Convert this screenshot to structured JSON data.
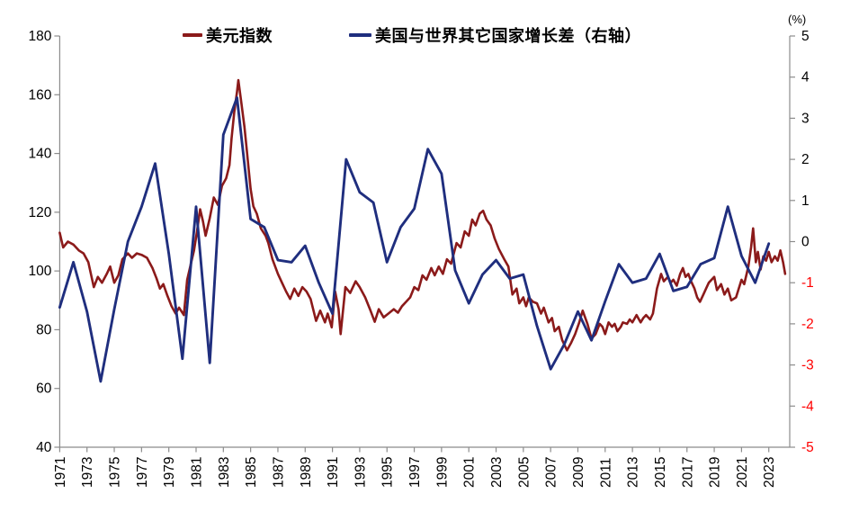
{
  "page": {
    "background": "#FFFFFF"
  },
  "chart_data": {
    "type": "line",
    "title": "",
    "legend_position": "top",
    "grid": "off",
    "axis_line_color": "#8C8C8C",
    "x_axis": {
      "tick_labels": [
        "1971",
        "1973",
        "1975",
        "1977",
        "1979",
        "1981",
        "1983",
        "1985",
        "1987",
        "1989",
        "1991",
        "1993",
        "1995",
        "1997",
        "1999",
        "2001",
        "2003",
        "2005",
        "2007",
        "2009",
        "2011",
        "2013",
        "2015",
        "2017",
        "2019",
        "2021",
        "2023"
      ],
      "range": [
        1971,
        2024.5
      ],
      "label_color": "#000000"
    },
    "left_axis": {
      "min": 40,
      "max": 180,
      "step": 20,
      "tick_labels": [
        "180",
        "160",
        "140",
        "120",
        "100",
        "80",
        "60",
        "40"
      ],
      "label_color": "#000000"
    },
    "right_axis": {
      "min": -5,
      "max": 5,
      "step": 1,
      "unit": "(%)",
      "tick_labels": [
        "5",
        "4",
        "3",
        "2",
        "1",
        "0",
        "-1",
        "-2",
        "-3",
        "-4",
        "-5"
      ],
      "positive_label_color": "#000000",
      "negative_label_color": "#FF0000"
    },
    "series": [
      {
        "name": "美元指数",
        "axis": "left",
        "color": "#8B1A1A",
        "points": [
          [
            1971.0,
            113
          ],
          [
            1971.25,
            108
          ],
          [
            1971.6,
            110
          ],
          [
            1972.0,
            109
          ],
          [
            1972.4,
            107
          ],
          [
            1972.75,
            106
          ],
          [
            1973.1,
            103
          ],
          [
            1973.5,
            94.5
          ],
          [
            1973.8,
            98
          ],
          [
            1974.1,
            96
          ],
          [
            1974.45,
            99
          ],
          [
            1974.7,
            101.5
          ],
          [
            1975.0,
            96
          ],
          [
            1975.3,
            98.5
          ],
          [
            1975.6,
            104
          ],
          [
            1976.0,
            106
          ],
          [
            1976.3,
            104.5
          ],
          [
            1976.65,
            106
          ],
          [
            1977.0,
            105.5
          ],
          [
            1977.4,
            104.5
          ],
          [
            1977.8,
            101
          ],
          [
            1978.1,
            97.5
          ],
          [
            1978.35,
            94
          ],
          [
            1978.6,
            95.5
          ],
          [
            1978.9,
            91.5
          ],
          [
            1979.2,
            88
          ],
          [
            1979.5,
            85.5
          ],
          [
            1979.75,
            87.5
          ],
          [
            1980.1,
            85
          ],
          [
            1980.35,
            97
          ],
          [
            1980.6,
            102
          ],
          [
            1980.85,
            107
          ],
          [
            1981.05,
            113
          ],
          [
            1981.3,
            121
          ],
          [
            1981.5,
            117
          ],
          [
            1981.7,
            112
          ],
          [
            1982.0,
            118
          ],
          [
            1982.3,
            125
          ],
          [
            1982.6,
            122.5
          ],
          [
            1982.9,
            129
          ],
          [
            1983.2,
            131.5
          ],
          [
            1983.45,
            136
          ],
          [
            1983.6,
            145
          ],
          [
            1983.8,
            154
          ],
          [
            1984.0,
            161
          ],
          [
            1984.1,
            165
          ],
          [
            1984.3,
            158
          ],
          [
            1984.55,
            149
          ],
          [
            1984.7,
            142
          ],
          [
            1985.0,
            128
          ],
          [
            1985.2,
            122
          ],
          [
            1985.45,
            119.5
          ],
          [
            1985.75,
            114.5
          ],
          [
            1986.1,
            112
          ],
          [
            1986.3,
            109.5
          ],
          [
            1986.6,
            104
          ],
          [
            1987.0,
            99
          ],
          [
            1987.3,
            96
          ],
          [
            1987.6,
            93
          ],
          [
            1987.9,
            90.5
          ],
          [
            1988.2,
            94
          ],
          [
            1988.5,
            91.5
          ],
          [
            1988.8,
            94.5
          ],
          [
            1989.1,
            93
          ],
          [
            1989.4,
            90.5
          ],
          [
            1989.8,
            83
          ],
          [
            1990.1,
            86.5
          ],
          [
            1990.45,
            82.5
          ],
          [
            1990.65,
            85.5
          ],
          [
            1990.95,
            80.8
          ],
          [
            1991.2,
            93
          ],
          [
            1991.45,
            87
          ],
          [
            1991.6,
            78.5
          ],
          [
            1991.95,
            94.5
          ],
          [
            1992.3,
            92.5
          ],
          [
            1992.7,
            96.5
          ],
          [
            1993.0,
            94.5
          ],
          [
            1993.4,
            91
          ],
          [
            1993.75,
            87
          ],
          [
            1994.1,
            82.7
          ],
          [
            1994.4,
            87
          ],
          [
            1994.75,
            84.2
          ],
          [
            1995.1,
            85.5
          ],
          [
            1995.5,
            87
          ],
          [
            1995.8,
            85.8
          ],
          [
            1996.1,
            88
          ],
          [
            1996.4,
            89.5
          ],
          [
            1996.7,
            91
          ],
          [
            1997.0,
            94.5
          ],
          [
            1997.3,
            93.5
          ],
          [
            1997.6,
            98.5
          ],
          [
            1997.9,
            97
          ],
          [
            1998.25,
            101
          ],
          [
            1998.5,
            98.5
          ],
          [
            1998.8,
            101.5
          ],
          [
            1999.1,
            99
          ],
          [
            1999.4,
            104
          ],
          [
            1999.7,
            102.5
          ],
          [
            2000.1,
            109.5
          ],
          [
            2000.4,
            108
          ],
          [
            2000.7,
            113.5
          ],
          [
            2001.0,
            112
          ],
          [
            2001.25,
            117.5
          ],
          [
            2001.5,
            115.5
          ],
          [
            2001.8,
            119.5
          ],
          [
            2002.05,
            120.5
          ],
          [
            2002.3,
            117.5
          ],
          [
            2002.6,
            115.5
          ],
          [
            2002.9,
            111
          ],
          [
            2003.2,
            107.5
          ],
          [
            2003.6,
            104
          ],
          [
            2003.9,
            101.5
          ],
          [
            2004.2,
            92
          ],
          [
            2004.5,
            94
          ],
          [
            2004.7,
            89
          ],
          [
            2005.0,
            91
          ],
          [
            2005.2,
            88
          ],
          [
            2005.4,
            91
          ],
          [
            2005.7,
            89.5
          ],
          [
            2006.0,
            89
          ],
          [
            2006.3,
            85.5
          ],
          [
            2006.5,
            87.5
          ],
          [
            2006.85,
            82.5
          ],
          [
            2007.1,
            84
          ],
          [
            2007.3,
            79.5
          ],
          [
            2007.6,
            81
          ],
          [
            2007.85,
            76.5
          ],
          [
            2008.2,
            73
          ],
          [
            2008.5,
            75.5
          ],
          [
            2008.8,
            78.5
          ],
          [
            2009.1,
            82.5
          ],
          [
            2009.35,
            86.5
          ],
          [
            2009.7,
            82
          ],
          [
            2010.0,
            77
          ],
          [
            2010.3,
            78.5
          ],
          [
            2010.6,
            82
          ],
          [
            2010.8,
            81
          ],
          [
            2011.0,
            78.5
          ],
          [
            2011.25,
            82.5
          ],
          [
            2011.5,
            81
          ],
          [
            2011.7,
            82
          ],
          [
            2011.9,
            79.5
          ],
          [
            2012.15,
            81
          ],
          [
            2012.3,
            82.5
          ],
          [
            2012.6,
            82
          ],
          [
            2012.8,
            83.5
          ],
          [
            2013.0,
            82.5
          ],
          [
            2013.3,
            85
          ],
          [
            2013.6,
            82.5
          ],
          [
            2013.8,
            84
          ],
          [
            2014.0,
            85
          ],
          [
            2014.3,
            83.5
          ],
          [
            2014.5,
            85.5
          ],
          [
            2014.8,
            94
          ],
          [
            2015.1,
            99
          ],
          [
            2015.3,
            96.5
          ],
          [
            2015.6,
            98
          ],
          [
            2015.8,
            96
          ],
          [
            2016.0,
            97
          ],
          [
            2016.25,
            95
          ],
          [
            2016.5,
            99
          ],
          [
            2016.7,
            101
          ],
          [
            2016.9,
            98
          ],
          [
            2017.1,
            99
          ],
          [
            2017.3,
            96.5
          ],
          [
            2017.55,
            94
          ],
          [
            2017.75,
            91
          ],
          [
            2017.95,
            89.5
          ],
          [
            2018.2,
            92
          ],
          [
            2018.4,
            94
          ],
          [
            2018.6,
            96
          ],
          [
            2019.0,
            98
          ],
          [
            2019.2,
            93.5
          ],
          [
            2019.5,
            95.5
          ],
          [
            2019.75,
            92
          ],
          [
            2020.0,
            94
          ],
          [
            2020.25,
            90
          ],
          [
            2020.6,
            91
          ],
          [
            2021.0,
            97
          ],
          [
            2021.2,
            95.5
          ],
          [
            2021.5,
            101.5
          ],
          [
            2021.7,
            108
          ],
          [
            2021.85,
            114.5
          ],
          [
            2022.05,
            103
          ],
          [
            2022.2,
            106.5
          ],
          [
            2022.4,
            100.5
          ],
          [
            2022.6,
            105
          ],
          [
            2022.8,
            103.5
          ],
          [
            2023.0,
            106.5
          ],
          [
            2023.2,
            103
          ],
          [
            2023.45,
            105
          ],
          [
            2023.65,
            103.5
          ],
          [
            2023.85,
            107
          ],
          [
            2024.05,
            103
          ],
          [
            2024.2,
            99
          ]
        ]
      },
      {
        "name": "美国与世界其它国家增长差（右轴）",
        "axis": "right",
        "color": "#1F2E7E",
        "years": [
          1971,
          1972,
          1973,
          1974,
          1975,
          1976,
          1977,
          1978,
          1979,
          1980,
          1981,
          1982,
          1983,
          1984,
          1985,
          1986,
          1987,
          1988,
          1989,
          1990,
          1991,
          1992,
          1993,
          1994,
          1995,
          1996,
          1997,
          1998,
          1999,
          2000,
          2001,
          2002,
          2003,
          2004,
          2005,
          2006,
          2007,
          2008,
          2009,
          2010,
          2011,
          2012,
          2013,
          2014,
          2015,
          2016,
          2017,
          2018,
          2019,
          2020,
          2021,
          2022,
          2023
        ],
        "values": [
          -1.6,
          -0.5,
          -1.7,
          -3.4,
          -1.65,
          0.0,
          0.85,
          1.9,
          -0.3,
          -2.85,
          0.85,
          -2.95,
          2.6,
          3.5,
          0.55,
          0.35,
          -0.45,
          -0.5,
          -0.1,
          -1.0,
          -1.75,
          2.0,
          1.2,
          0.95,
          -0.5,
          0.35,
          0.8,
          2.25,
          1.65,
          -0.7,
          -1.5,
          -0.8,
          -0.45,
          -0.9,
          -0.8,
          -2.05,
          -3.1,
          -2.5,
          -1.7,
          -2.4,
          -1.45,
          -0.55,
          -1.0,
          -0.9,
          -0.3,
          -1.2,
          -1.1,
          -0.55,
          -0.4,
          0.85,
          -0.35,
          -1.0,
          -0.05
        ]
      }
    ]
  }
}
